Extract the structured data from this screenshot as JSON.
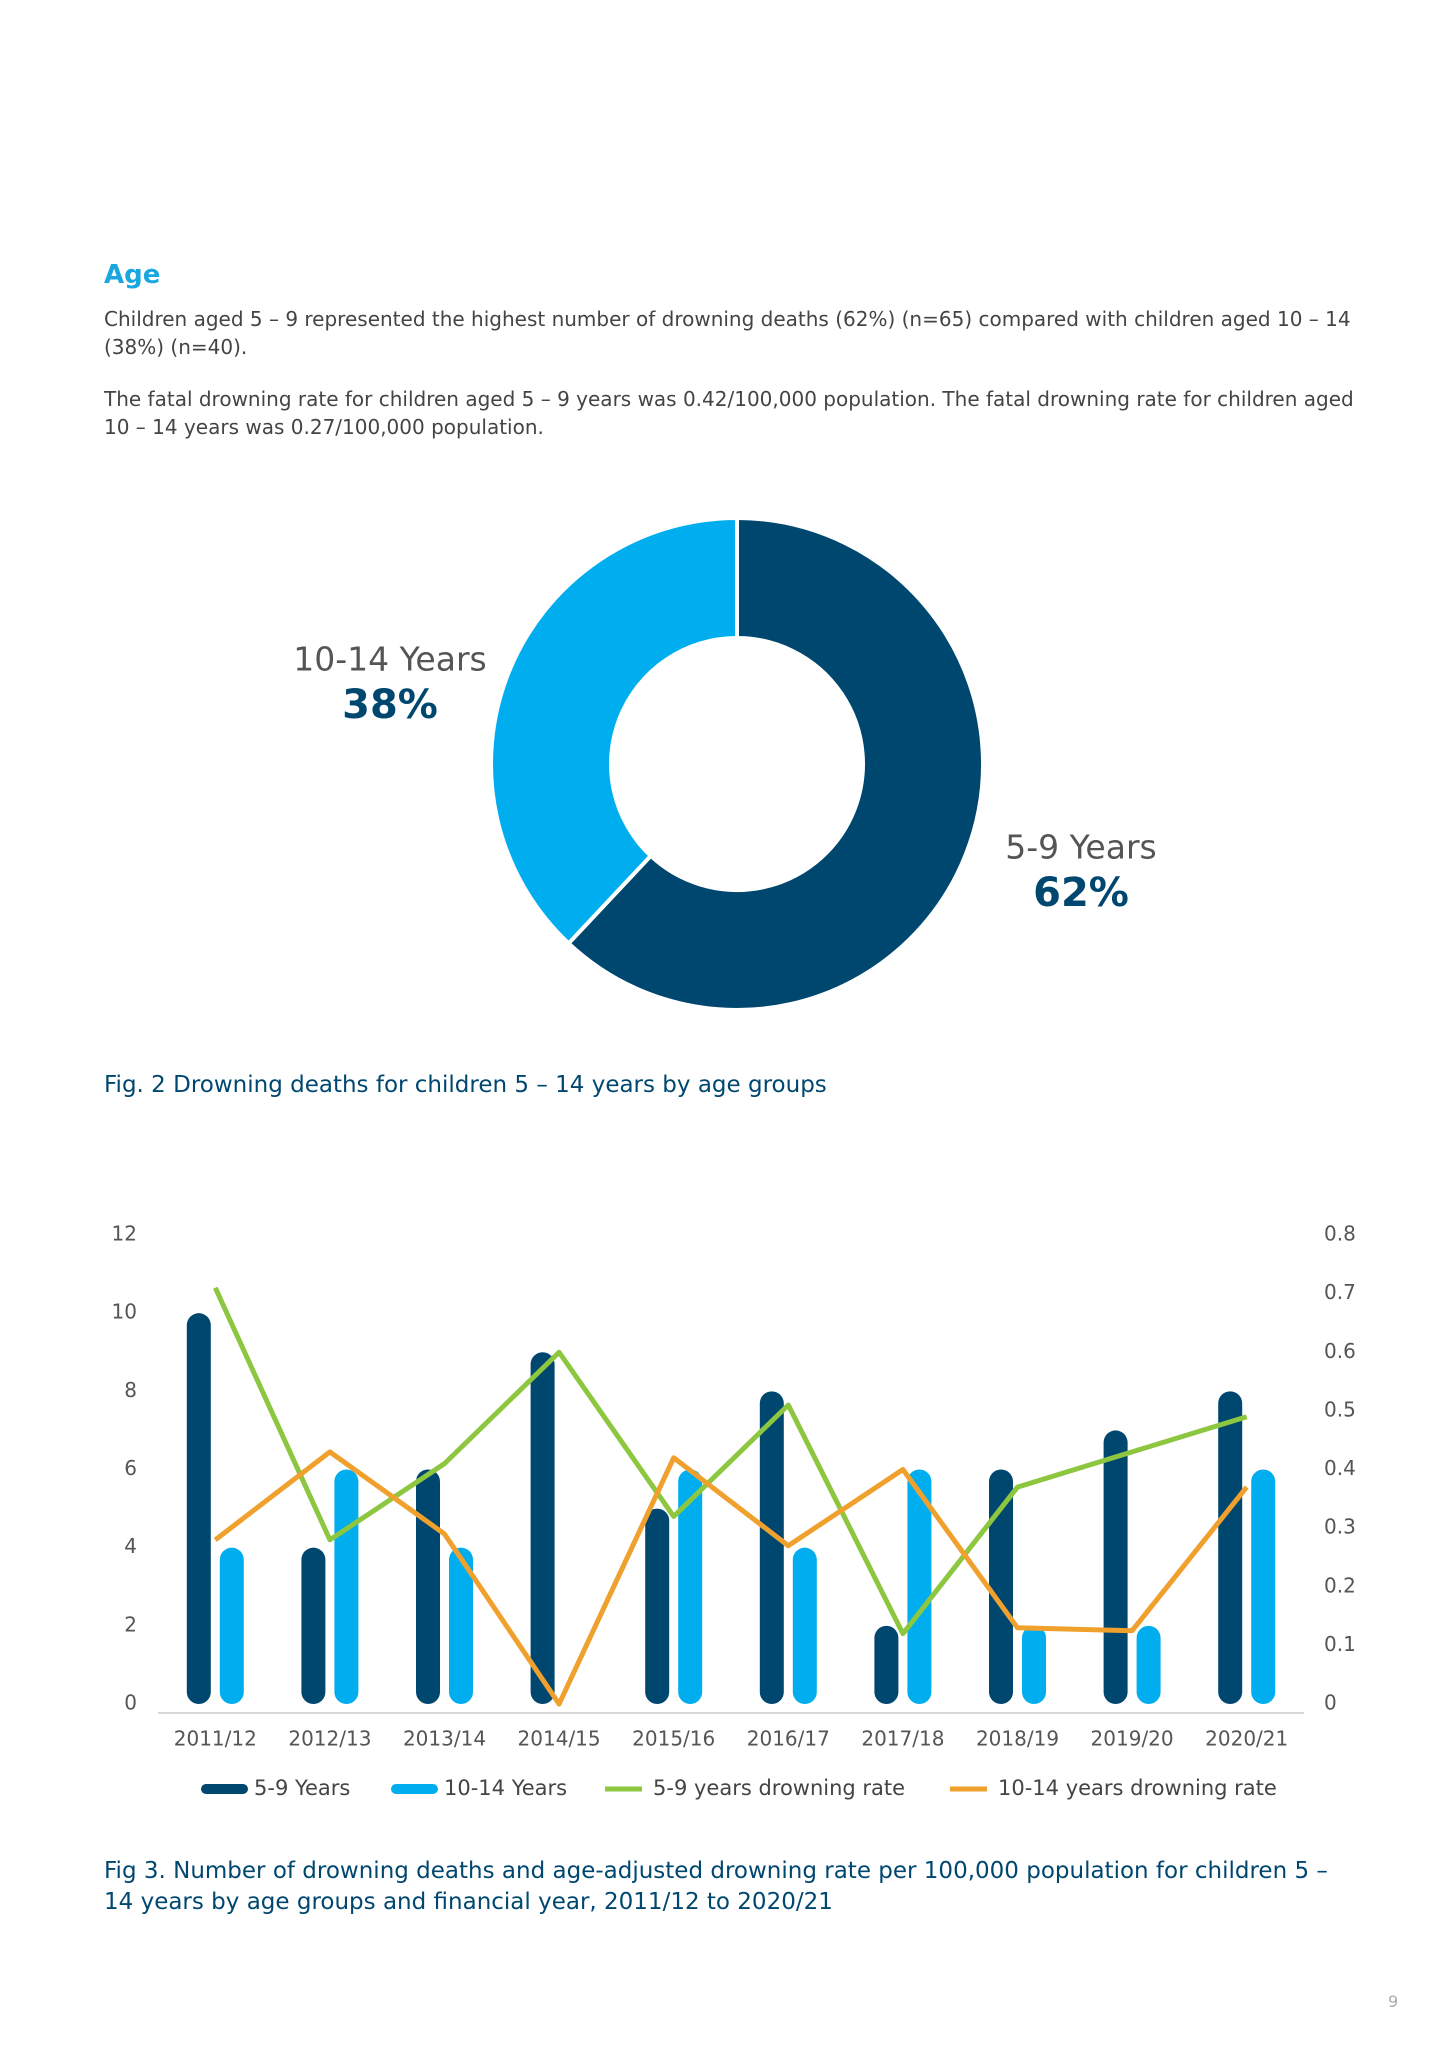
{
  "heading": "Age",
  "paragraphs": [
    "Children aged 5 – 9 represented the highest number of drowning deaths (62%) (n=65) compared with children aged 10 – 14 (38%) (n=40).",
    "The fatal drowning rate for children aged 5 – 9 years was 0.42/100,000 population. The fatal drowning rate for children aged 10 – 14 years was 0.27/100,000 population."
  ],
  "chart_data": [
    {
      "type": "pie",
      "donut": true,
      "categories": [
        "5-9 Years",
        "10-14 Years"
      ],
      "values": [
        62,
        38
      ],
      "value_labels": [
        "62%",
        "38%"
      ],
      "colors": [
        "#004770",
        "#00aeef"
      ],
      "caption": "Fig. 2 Drowning deaths for children 5 – 14 years by age groups"
    },
    {
      "type": "bar",
      "categories": [
        "2011/12",
        "2012/13",
        "2013/14",
        "2014/15",
        "2015/16",
        "2016/17",
        "2017/18",
        "2018/19",
        "2019/20",
        "2020/21"
      ],
      "series": [
        {
          "name": "5-9 Years",
          "color": "#004770",
          "values": [
            10,
            4,
            6,
            9,
            5,
            8,
            2,
            6,
            7,
            8
          ]
        },
        {
          "name": "10-14 Years",
          "color": "#00aeef",
          "values": [
            4,
            6,
            4,
            0,
            6,
            4,
            6,
            2,
            2,
            6
          ]
        },
        {
          "name": "5-9 years drowning rate",
          "color": "#8dc63f",
          "type": "line",
          "axis": "y2",
          "values": [
            0.71,
            0.28,
            0.41,
            0.6,
            0.32,
            0.51,
            0.12,
            0.37,
            0.43,
            0.49
          ]
        },
        {
          "name": "10-14 years drowning rate",
          "color": "#f0a02c",
          "type": "line",
          "axis": "y2",
          "values": [
            0.28,
            0.43,
            0.29,
            0,
            0.42,
            0.27,
            0.4,
            0.13,
            0.125,
            0.37
          ]
        }
      ],
      "ylim": [
        0,
        12
      ],
      "yticks": [
        0,
        2,
        4,
        6,
        8,
        10,
        12
      ],
      "y2lim": [
        0,
        0.8
      ],
      "y2ticks": [
        0,
        0.1,
        0.2,
        0.3,
        0.4,
        0.5,
        0.6,
        0.7,
        0.8
      ],
      "legend": "bottom",
      "caption": "Fig 3. Number of drowning deaths and age-adjusted drowning rate per 100,000 population for children 5 – 14 years by age groups and financial year, 2011/12 to 2020/21"
    }
  ],
  "page_number": "9"
}
